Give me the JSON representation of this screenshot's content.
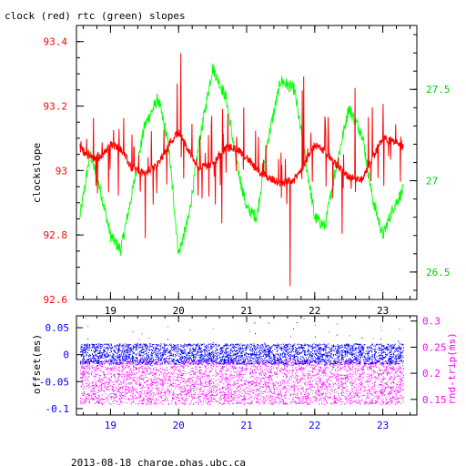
{
  "title": "clock (red) rtc (green) slopes",
  "footer": "2013-08-18 charge.phas.ubc.ca",
  "colors": {
    "clock": "#ff0000",
    "rtc": "#00ff00",
    "offset": "#0000ff",
    "rtt": "#ff00ff",
    "axis": "#000000"
  },
  "chart_data": [
    {
      "type": "line",
      "xlim": [
        18.5,
        23.5
      ],
      "x_ticks": [
        "19",
        "20",
        "21",
        "22",
        "23"
      ],
      "ylabel": "clockslope",
      "ylim": [
        92.6,
        93.45
      ],
      "y_ticks": [
        "92.6",
        "92.8",
        "93",
        "93.2",
        "93.4"
      ],
      "y_ticks_values": [
        92.6,
        92.8,
        93.0,
        93.2,
        93.4
      ],
      "y2lim": [
        26.35,
        27.85
      ],
      "y2_ticks": [
        "26.5",
        "27",
        "27.5"
      ],
      "y2_ticks_values": [
        26.5,
        27.0,
        27.5
      ],
      "grid": false,
      "series": [
        {
          "name": "clock",
          "axis": "left",
          "color": "#ff0000",
          "x": [
            18.55,
            18.7,
            18.85,
            19.0,
            19.15,
            19.3,
            19.5,
            19.7,
            19.85,
            20.0,
            20.15,
            20.3,
            20.5,
            20.7,
            20.85,
            21.0,
            21.15,
            21.3,
            21.5,
            21.7,
            21.85,
            22.0,
            22.15,
            22.3,
            22.5,
            22.7,
            22.85,
            23.0,
            23.15,
            23.3
          ],
          "y": [
            93.07,
            93.04,
            93.04,
            93.08,
            93.07,
            93.01,
            92.99,
            93.02,
            93.08,
            93.12,
            93.06,
            93.01,
            93.02,
            93.07,
            93.07,
            93.04,
            93.0,
            92.98,
            92.96,
            92.97,
            93.02,
            93.08,
            93.06,
            93.02,
            92.98,
            92.97,
            93.04,
            93.1,
            93.09,
            93.07
          ]
        },
        {
          "name": "rtc",
          "axis": "right",
          "color": "#00ff00",
          "x": [
            18.55,
            18.7,
            18.85,
            19.0,
            19.15,
            19.3,
            19.5,
            19.7,
            19.85,
            20.0,
            20.15,
            20.3,
            20.5,
            20.7,
            20.85,
            21.0,
            21.15,
            21.3,
            21.5,
            21.7,
            21.85,
            22.0,
            22.15,
            22.3,
            22.5,
            22.7,
            22.85,
            23.0,
            23.15,
            23.3
          ],
          "y": [
            26.8,
            27.15,
            26.95,
            26.7,
            26.62,
            26.9,
            27.3,
            27.45,
            27.2,
            26.6,
            26.8,
            27.2,
            27.62,
            27.45,
            27.1,
            26.85,
            26.8,
            27.2,
            27.55,
            27.5,
            27.15,
            26.8,
            26.75,
            27.05,
            27.4,
            27.25,
            26.9,
            26.7,
            26.85,
            26.95
          ]
        }
      ]
    },
    {
      "type": "scatter",
      "xlim": [
        18.5,
        23.5
      ],
      "x_ticks": [
        "19",
        "20",
        "21",
        "22",
        "23"
      ],
      "ylabel": "offset(ms)",
      "ylim": [
        -0.112,
        0.072
      ],
      "y_ticks": [
        "0.05",
        "0",
        "-0.05",
        "-0.1"
      ],
      "y_ticks_values": [
        0.05,
        0.0,
        -0.05,
        -0.1
      ],
      "y2label": "rnd-trip(ms)",
      "y2lim": [
        0.12,
        0.31
      ],
      "y2_ticks": [
        "0.3",
        "0.25",
        "0.2",
        "0.15"
      ],
      "y2_ticks_values": [
        0.3,
        0.25,
        0.2,
        0.15
      ],
      "grid": false,
      "series": [
        {
          "name": "offset",
          "axis": "left",
          "color": "#0000ff",
          "x_range": [
            18.55,
            23.3
          ],
          "center": 0.0,
          "spread": [
            -0.018,
            0.02
          ]
        },
        {
          "name": "rnd-trip",
          "axis": "right",
          "color": "#ff00ff",
          "x_range": [
            18.55,
            23.3
          ],
          "center": 0.18,
          "spread": [
            -0.04,
            0.045
          ]
        }
      ]
    }
  ]
}
